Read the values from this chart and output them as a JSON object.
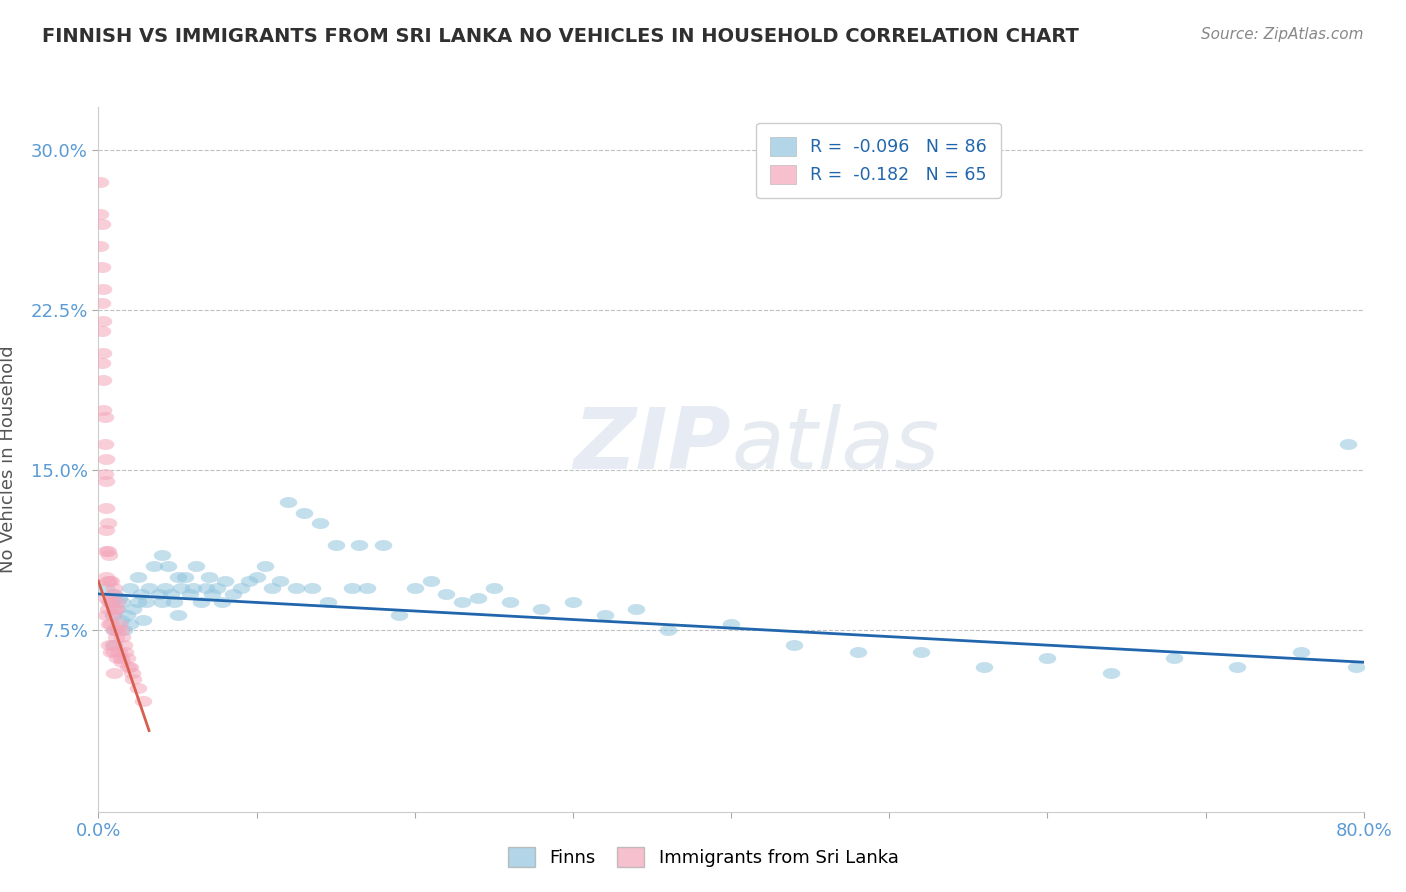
{
  "title": "FINNISH VS IMMIGRANTS FROM SRI LANKA NO VEHICLES IN HOUSEHOLD CORRELATION CHART",
  "source": "Source: ZipAtlas.com",
  "ylabel": "No Vehicles in Household",
  "xlim": [
    0.0,
    0.8
  ],
  "ylim": [
    -0.01,
    0.32
  ],
  "legend1_R": "-0.096",
  "legend1_N": "86",
  "legend2_R": "-0.182",
  "legend2_N": "65",
  "legend1_label": "Finns",
  "legend2_label": "Immigrants from Sri Lanka",
  "blue_color": "#92c5de",
  "pink_color": "#f4a6bb",
  "blue_line_color": "#2166ac",
  "pink_line_color": "#d6604d",
  "title_color": "#404040",
  "grid_color": "#bbbbbb",
  "background": "#ffffff",
  "finns_x": [
    0.005,
    0.008,
    0.009,
    0.01,
    0.01,
    0.01,
    0.012,
    0.013,
    0.014,
    0.015,
    0.016,
    0.018,
    0.02,
    0.02,
    0.022,
    0.025,
    0.025,
    0.027,
    0.028,
    0.03,
    0.032,
    0.035,
    0.038,
    0.04,
    0.04,
    0.042,
    0.044,
    0.046,
    0.048,
    0.05,
    0.05,
    0.052,
    0.055,
    0.058,
    0.06,
    0.062,
    0.065,
    0.068,
    0.07,
    0.072,
    0.075,
    0.078,
    0.08,
    0.085,
    0.09,
    0.095,
    0.1,
    0.105,
    0.11,
    0.115,
    0.12,
    0.125,
    0.13,
    0.135,
    0.14,
    0.145,
    0.15,
    0.16,
    0.165,
    0.17,
    0.18,
    0.19,
    0.2,
    0.21,
    0.22,
    0.23,
    0.24,
    0.25,
    0.26,
    0.28,
    0.3,
    0.32,
    0.34,
    0.36,
    0.4,
    0.44,
    0.48,
    0.52,
    0.56,
    0.6,
    0.64,
    0.68,
    0.72,
    0.76,
    0.79,
    0.795
  ],
  "finns_y": [
    0.095,
    0.088,
    0.082,
    0.092,
    0.075,
    0.068,
    0.085,
    0.09,
    0.08,
    0.088,
    0.075,
    0.082,
    0.095,
    0.078,
    0.085,
    0.1,
    0.088,
    0.092,
    0.08,
    0.088,
    0.095,
    0.105,
    0.092,
    0.11,
    0.088,
    0.095,
    0.105,
    0.092,
    0.088,
    0.1,
    0.082,
    0.095,
    0.1,
    0.092,
    0.095,
    0.105,
    0.088,
    0.095,
    0.1,
    0.092,
    0.095,
    0.088,
    0.098,
    0.092,
    0.095,
    0.098,
    0.1,
    0.105,
    0.095,
    0.098,
    0.135,
    0.095,
    0.13,
    0.095,
    0.125,
    0.088,
    0.115,
    0.095,
    0.115,
    0.095,
    0.115,
    0.082,
    0.095,
    0.098,
    0.092,
    0.088,
    0.09,
    0.095,
    0.088,
    0.085,
    0.088,
    0.082,
    0.085,
    0.075,
    0.078,
    0.068,
    0.065,
    0.065,
    0.058,
    0.062,
    0.055,
    0.062,
    0.058,
    0.065,
    0.162,
    0.058
  ],
  "sri_x": [
    0.001,
    0.001,
    0.001,
    0.002,
    0.002,
    0.002,
    0.002,
    0.002,
    0.003,
    0.003,
    0.003,
    0.003,
    0.003,
    0.004,
    0.004,
    0.004,
    0.005,
    0.005,
    0.005,
    0.005,
    0.005,
    0.005,
    0.005,
    0.005,
    0.006,
    0.006,
    0.006,
    0.006,
    0.007,
    0.007,
    0.007,
    0.007,
    0.007,
    0.008,
    0.008,
    0.008,
    0.008,
    0.009,
    0.009,
    0.009,
    0.01,
    0.01,
    0.01,
    0.01,
    0.01,
    0.011,
    0.011,
    0.012,
    0.012,
    0.012,
    0.013,
    0.013,
    0.014,
    0.014,
    0.015,
    0.015,
    0.016,
    0.017,
    0.018,
    0.019,
    0.02,
    0.021,
    0.022,
    0.025,
    0.028
  ],
  "sri_y": [
    0.285,
    0.27,
    0.255,
    0.265,
    0.245,
    0.228,
    0.215,
    0.2,
    0.235,
    0.22,
    0.205,
    0.192,
    0.178,
    0.175,
    0.162,
    0.148,
    0.155,
    0.145,
    0.132,
    0.122,
    0.112,
    0.1,
    0.09,
    0.082,
    0.125,
    0.112,
    0.098,
    0.085,
    0.11,
    0.098,
    0.088,
    0.078,
    0.068,
    0.098,
    0.088,
    0.078,
    0.065,
    0.092,
    0.082,
    0.068,
    0.095,
    0.085,
    0.075,
    0.065,
    0.055,
    0.085,
    0.072,
    0.088,
    0.075,
    0.062,
    0.078,
    0.065,
    0.075,
    0.062,
    0.072,
    0.06,
    0.068,
    0.065,
    0.062,
    0.058,
    0.058,
    0.055,
    0.052,
    0.048,
    0.042
  ],
  "blue_trendline_x": [
    0.0,
    0.8
  ],
  "blue_trendline_y": [
    0.092,
    0.06
  ],
  "pink_trendline_x": [
    0.0,
    0.032
  ],
  "pink_trendline_y": [
    0.098,
    0.028
  ]
}
